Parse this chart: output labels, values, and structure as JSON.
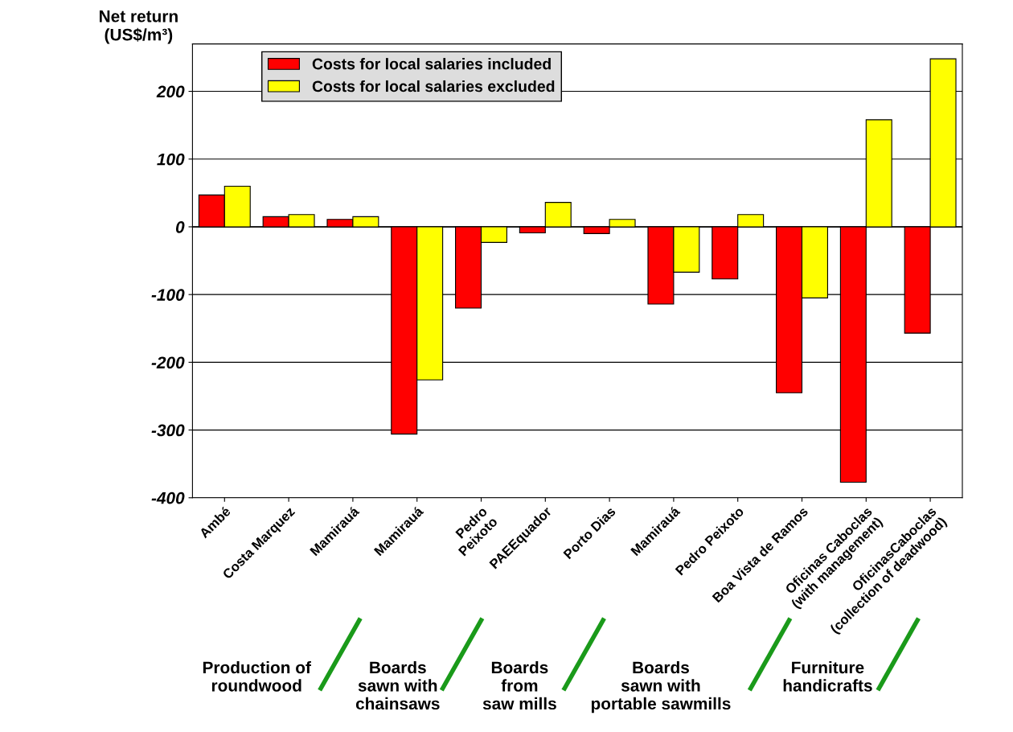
{
  "chart_data": {
    "type": "bar",
    "ylabel": "Net return\n(US$/m³)",
    "categories": [
      "Ambé",
      "Costa Marquez",
      "Mamirauá",
      "Mamirauá",
      "Pedro\nPeixoto",
      "PAEEquador",
      "Porto Dias",
      "Mamirauá",
      "Pedro Peixoto",
      "Boa Vista de Ramos",
      "Oficinas Caboclas\n(with management)",
      "OficinasCaboclas\n(collection of deadwood)"
    ],
    "series": [
      {
        "name": "Costs for local salaries included",
        "color": "#ff0000",
        "values": [
          47,
          15,
          11,
          -306,
          -120,
          -9,
          -10,
          -114,
          -77,
          -245,
          -377,
          -157
        ]
      },
      {
        "name": "Costs for local salaries excluded",
        "color": "#ffff00",
        "values": [
          60,
          18,
          15,
          -226,
          -23,
          36,
          11,
          -67,
          18,
          -105,
          158,
          248
        ]
      }
    ],
    "ylim": [
      -400,
      270
    ],
    "yticks": [
      -400,
      -300,
      -200,
      -100,
      0,
      100,
      200
    ],
    "grid": "y",
    "legend": "top left",
    "annotations": [
      "Production of\nroundwood",
      "Boards\nsawn with\nchainsaws",
      "Boards\nfrom\nsaw mills",
      "Boards\nsawn with\nportable sawmills",
      "Furniture\nhandicrafts"
    ]
  }
}
